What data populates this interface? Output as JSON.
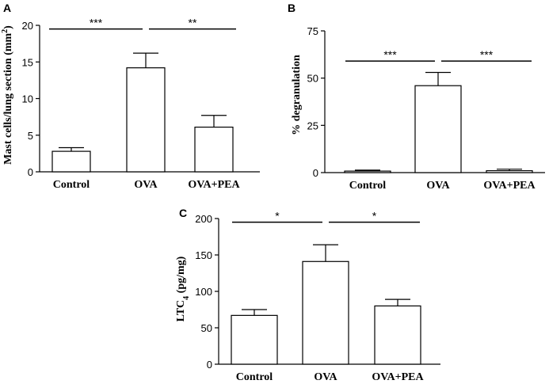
{
  "chart_data": [
    {
      "panel": "A",
      "type": "bar",
      "categories": [
        "Control",
        "OVA",
        "OVA+PEA"
      ],
      "values": [
        2.8,
        14.2,
        6.1
      ],
      "errors": [
        0.5,
        2.0,
        1.6
      ],
      "ylabel_main": "Mast cells/lung section (mm",
      "ylabel_sup": "2",
      "ylabel_end": ")",
      "ylim": [
        0,
        20
      ],
      "yticks": [
        "0",
        "5",
        "10",
        "15",
        "20"
      ],
      "significance": [
        {
          "from": 0,
          "to": 1,
          "label": "***",
          "y": 19.5
        },
        {
          "from": 1,
          "to": 2,
          "label": "**",
          "y": 19.5
        }
      ]
    },
    {
      "panel": "B",
      "type": "bar",
      "categories": [
        "Control",
        "OVA",
        "OVA+PEA"
      ],
      "values": [
        0.8,
        46,
        1.0
      ],
      "errors": [
        0.5,
        7,
        0.8
      ],
      "ylabel_main": "% degranulation",
      "ylabel_sup": "",
      "ylabel_end": "",
      "ylim": [
        0,
        75
      ],
      "yticks": [
        "0",
        "25",
        "50",
        "75"
      ],
      "significance": [
        {
          "from": 0,
          "to": 1,
          "label": "***",
          "y": 59
        },
        {
          "from": 1,
          "to": 2,
          "label": "***",
          "y": 59
        }
      ]
    },
    {
      "panel": "C",
      "type": "bar",
      "categories": [
        "Control",
        "OVA",
        "OVA+PEA"
      ],
      "values": [
        67,
        141,
        80
      ],
      "errors": [
        8,
        23,
        9
      ],
      "ylabel_main": "LTC",
      "ylabel_sub": "4",
      "ylabel_end": " (pg/mg)",
      "ylim": [
        0,
        200
      ],
      "yticks": [
        "0",
        "50",
        "100",
        "150",
        "200"
      ],
      "significance": [
        {
          "from": 0,
          "to": 1,
          "label": "*",
          "y": 195
        },
        {
          "from": 1,
          "to": 2,
          "label": "*",
          "y": 195
        }
      ]
    }
  ]
}
